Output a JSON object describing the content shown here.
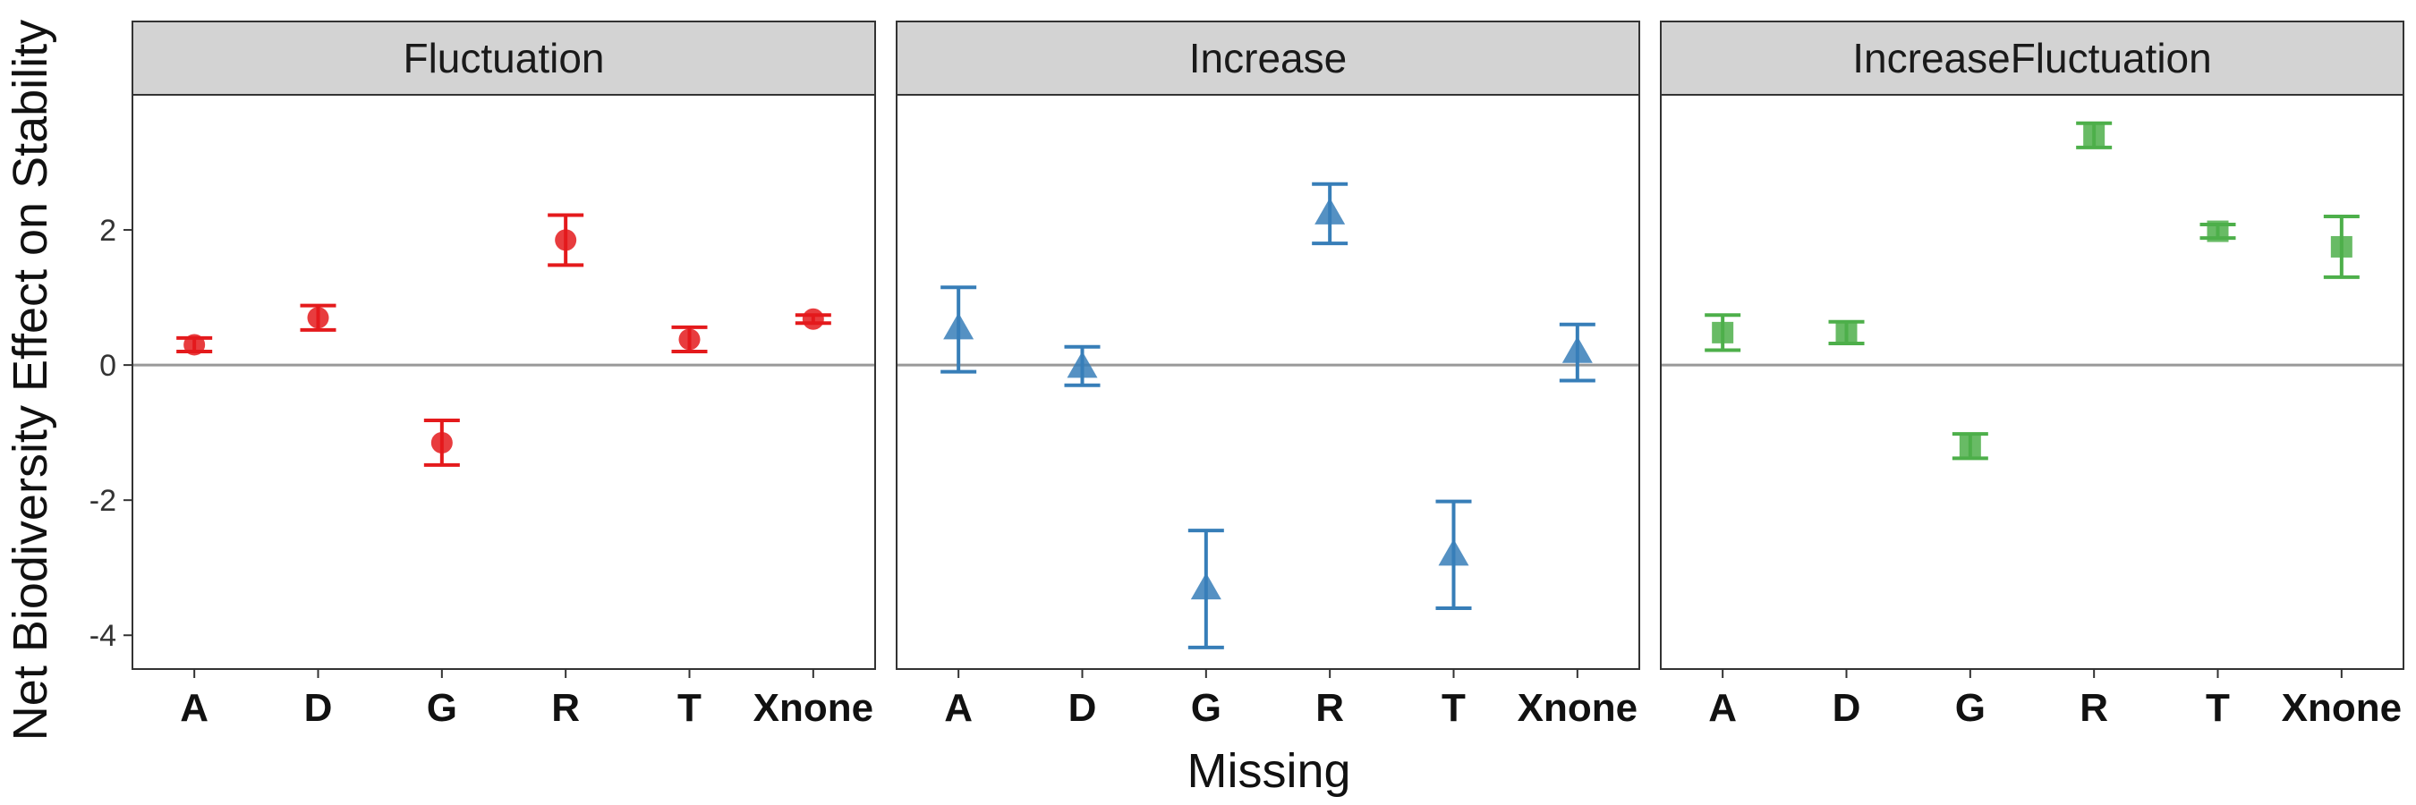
{
  "chart_data": {
    "type": "scatter",
    "xlabel": "Missing",
    "ylabel": "Net Biodiversity Effect on Stability",
    "ylim": [
      -4.5,
      4.0
    ],
    "yticks": [
      -4,
      -2,
      0,
      2
    ],
    "categories": [
      "A",
      "D",
      "G",
      "R",
      "T",
      "Xnone"
    ],
    "reference_line": 0,
    "grid": false,
    "legend": "none",
    "panels": [
      {
        "name": "Fluctuation",
        "color": "#E41A1C",
        "marker": "circle",
        "points": [
          {
            "x": "A",
            "y": 0.3,
            "low": 0.2,
            "high": 0.4
          },
          {
            "x": "D",
            "y": 0.7,
            "low": 0.52,
            "high": 0.88
          },
          {
            "x": "G",
            "y": -1.15,
            "low": -1.48,
            "high": -0.82
          },
          {
            "x": "R",
            "y": 1.85,
            "low": 1.48,
            "high": 2.22
          },
          {
            "x": "T",
            "y": 0.38,
            "low": 0.2,
            "high": 0.56
          },
          {
            "x": "Xnone",
            "y": 0.68,
            "low": 0.62,
            "high": 0.74
          }
        ]
      },
      {
        "name": "Increase",
        "color": "#377EB8",
        "marker": "triangle",
        "points": [
          {
            "x": "A",
            "y": 0.55,
            "low": -0.1,
            "high": 1.15
          },
          {
            "x": "D",
            "y": -0.02,
            "low": -0.3,
            "high": 0.27
          },
          {
            "x": "G",
            "y": -3.3,
            "low": -4.18,
            "high": -2.45
          },
          {
            "x": "R",
            "y": 2.25,
            "low": 1.8,
            "high": 2.68
          },
          {
            "x": "T",
            "y": -2.8,
            "low": -3.6,
            "high": -2.02
          },
          {
            "x": "Xnone",
            "y": 0.2,
            "low": -0.23,
            "high": 0.6
          }
        ]
      },
      {
        "name": "IncreaseFluctuation",
        "color": "#4DAF4A",
        "marker": "square",
        "points": [
          {
            "x": "A",
            "y": 0.48,
            "low": 0.22,
            "high": 0.74
          },
          {
            "x": "D",
            "y": 0.48,
            "low": 0.32,
            "high": 0.64
          },
          {
            "x": "G",
            "y": -1.2,
            "low": -1.38,
            "high": -1.02
          },
          {
            "x": "R",
            "y": 3.4,
            "low": 3.22,
            "high": 3.58
          },
          {
            "x": "T",
            "y": 1.98,
            "low": 1.88,
            "high": 2.08
          },
          {
            "x": "Xnone",
            "y": 1.75,
            "low": 1.3,
            "high": 2.2
          }
        ]
      }
    ]
  }
}
